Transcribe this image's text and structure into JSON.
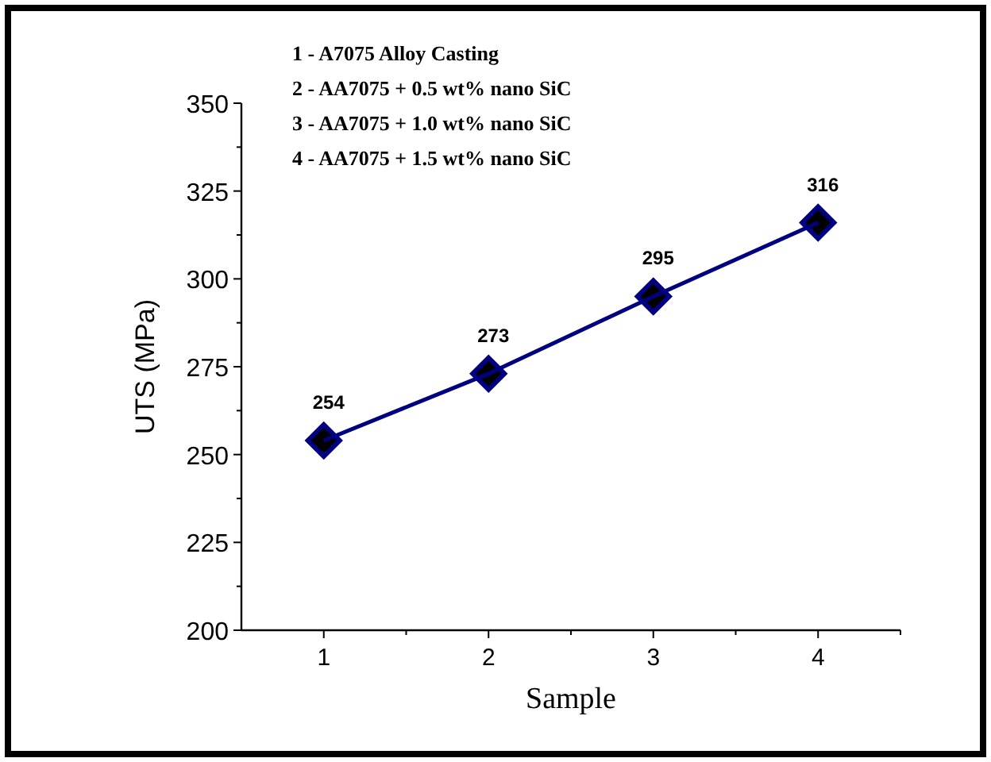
{
  "chart_data": {
    "type": "line",
    "xlabel": "Sample",
    "ylabel": "UTS (MPa)",
    "x": [
      1,
      2,
      3,
      4
    ],
    "series": [
      {
        "color": "#000080",
        "values": [
          254,
          273,
          295,
          316
        ]
      }
    ],
    "marker": "diamond",
    "line_style": "solid",
    "data_labels": true,
    "xlim": [
      0.5,
      4.5
    ],
    "xticks": [
      1,
      {
        "value": 1.5,
        "label": null
      },
      2,
      {
        "value": 2.5,
        "label": null
      },
      3,
      {
        "value": 3.5,
        "label": null
      },
      4,
      {
        "value": 4.5,
        "label": null
      }
    ],
    "ylim": [
      200,
      350
    ],
    "yticks": [
      200,
      {
        "value": 212.5,
        "label": null
      },
      225,
      {
        "value": 237.5,
        "label": null
      },
      250,
      {
        "value": 262.5,
        "label": null
      },
      275,
      {
        "value": 287.5,
        "label": null
      },
      300,
      {
        "value": 312.5,
        "label": null
      },
      325,
      {
        "value": 337.5,
        "label": null
      },
      350
    ],
    "annotations": [
      "1 - A7075 Alloy Casting",
      "2 - AA7075 + 0.5 wt% nano SiC",
      "3 - AA7075 + 1.0 wt% nano SiC",
      "4 - AA7075 + 1.5 wt% nano SiC"
    ]
  }
}
